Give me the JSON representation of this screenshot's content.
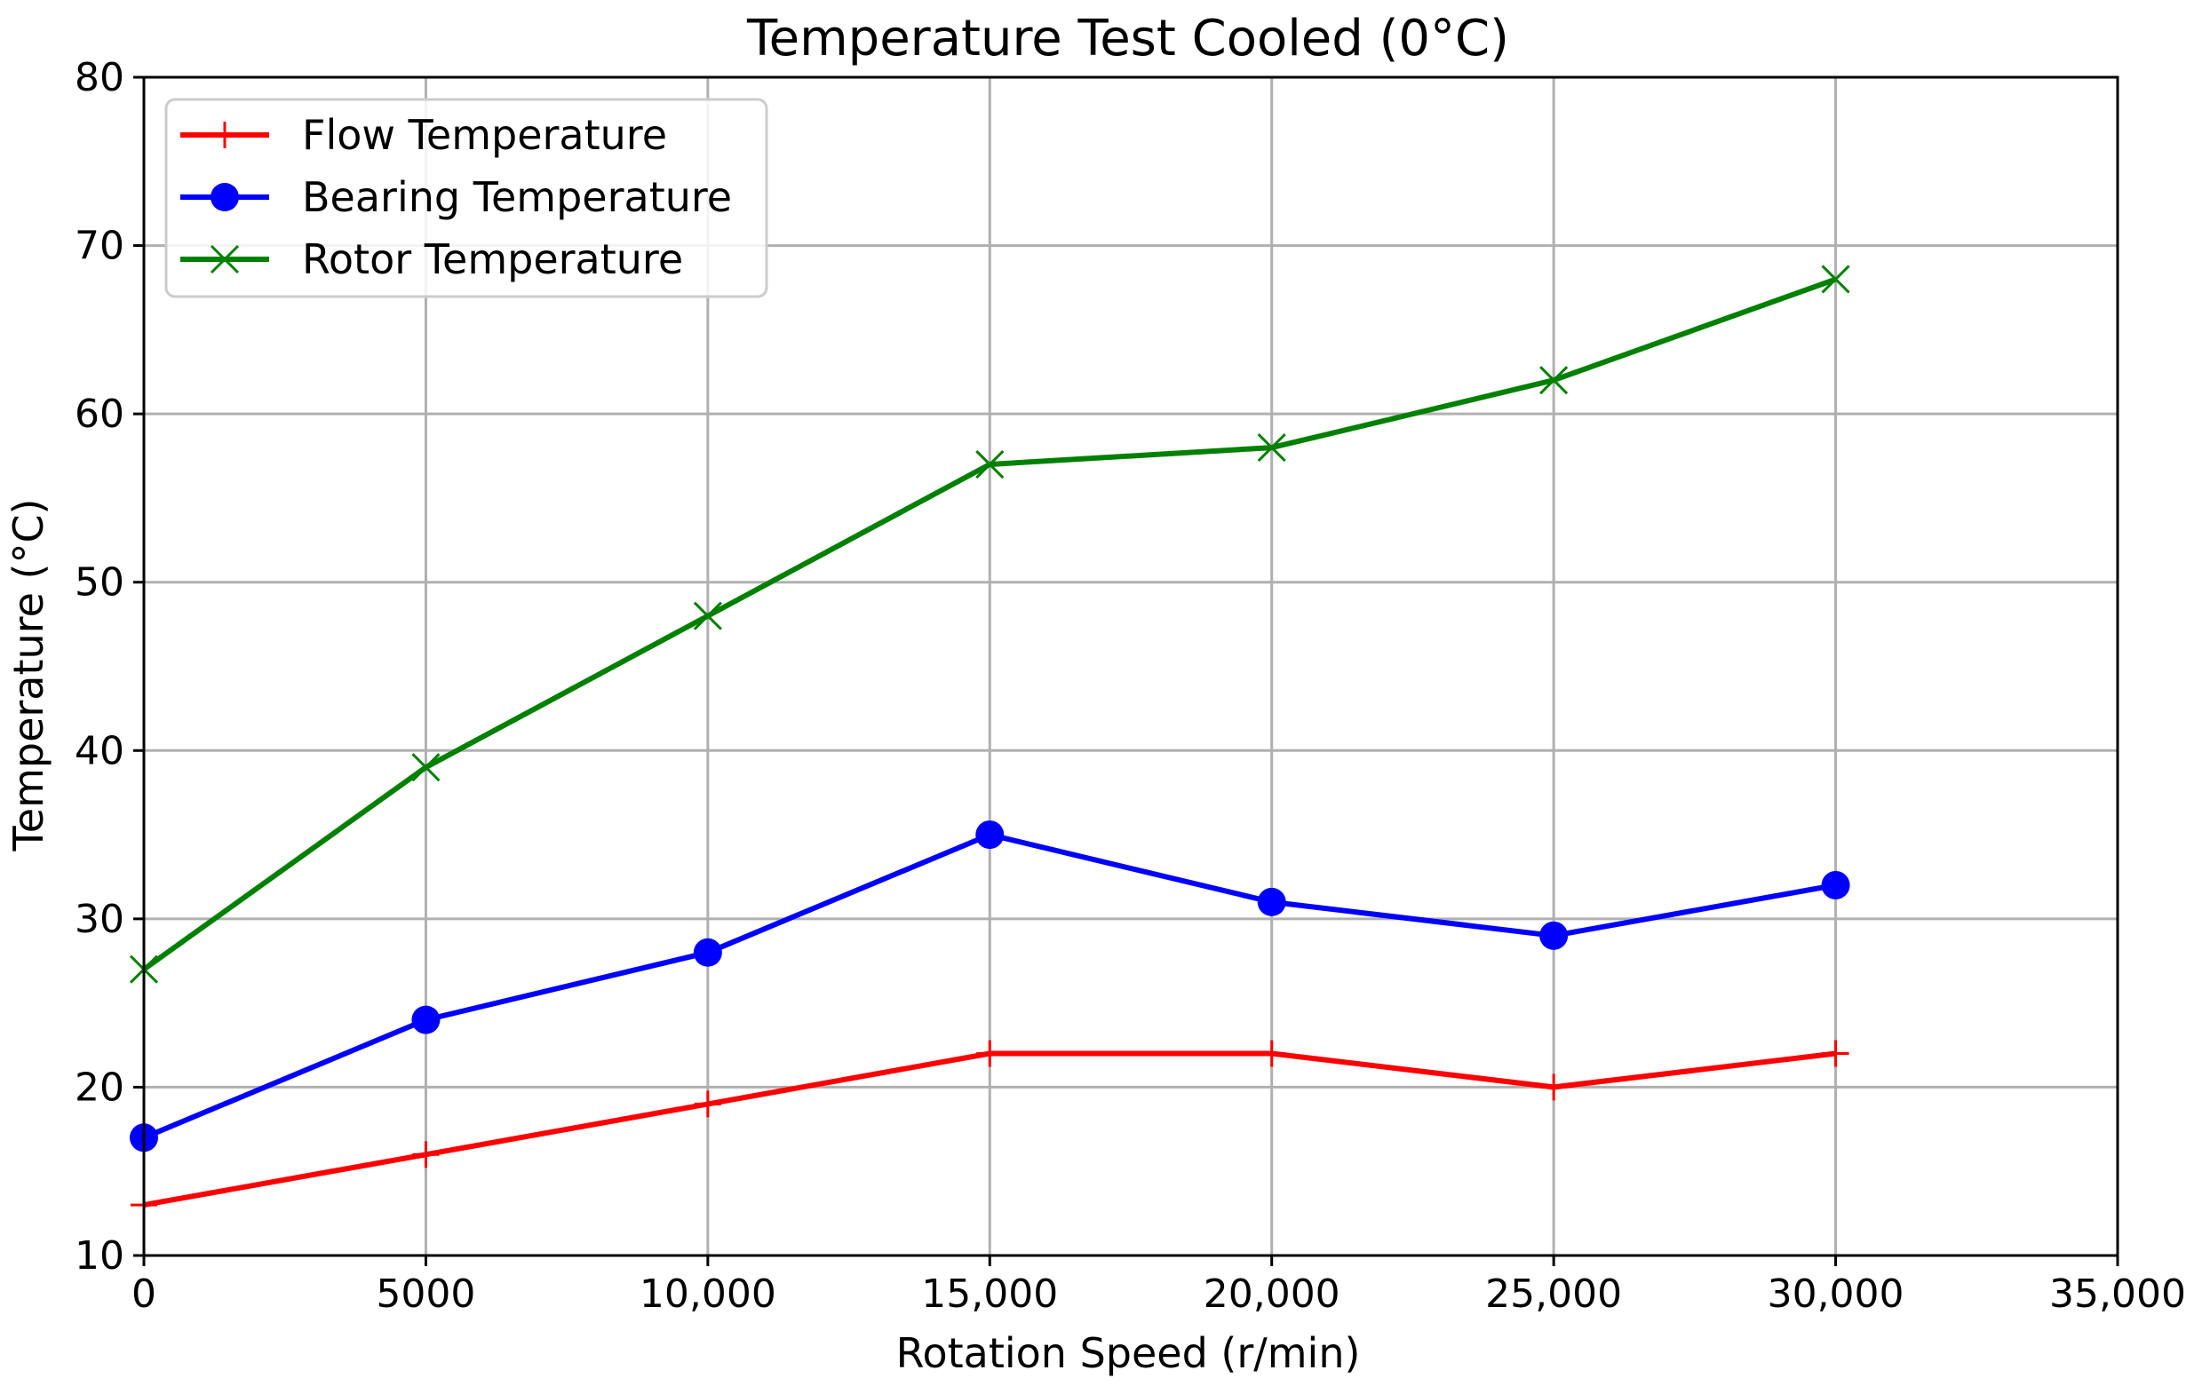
{
  "chart_data": {
    "type": "line",
    "title": "Temperature Test Cooled (0°C)",
    "xlabel": "Rotation Speed (r/min)",
    "ylabel": "Temperature (°C)",
    "xlim": [
      0,
      35000
    ],
    "ylim": [
      10,
      80
    ],
    "grid": true,
    "legend_position": "top-left",
    "x_ticks": [
      {
        "value": 0,
        "label": "0"
      },
      {
        "value": 5000,
        "label": "5000"
      },
      {
        "value": 10000,
        "label": "10,000"
      },
      {
        "value": 15000,
        "label": "15,000"
      },
      {
        "value": 20000,
        "label": "20,000"
      },
      {
        "value": 25000,
        "label": "25,000"
      },
      {
        "value": 30000,
        "label": "30,000"
      },
      {
        "value": 35000,
        "label": "35,000"
      }
    ],
    "y_ticks": [
      {
        "value": 10,
        "label": "10"
      },
      {
        "value": 20,
        "label": "20"
      },
      {
        "value": 30,
        "label": "30"
      },
      {
        "value": 40,
        "label": "40"
      },
      {
        "value": 50,
        "label": "50"
      },
      {
        "value": 60,
        "label": "60"
      },
      {
        "value": 70,
        "label": "70"
      },
      {
        "value": 80,
        "label": "80"
      }
    ],
    "x": [
      0,
      5000,
      10000,
      15000,
      20000,
      25000,
      30000
    ],
    "series": [
      {
        "name": "Flow Temperature",
        "key": "flow",
        "color": "#ff0000",
        "marker": "plus",
        "values": [
          13,
          16,
          19,
          22,
          22,
          20,
          22
        ]
      },
      {
        "name": "Bearing Temperature",
        "key": "bearing",
        "color": "#0000ff",
        "marker": "circle",
        "values": [
          17,
          24,
          28,
          35,
          31,
          29,
          32
        ]
      },
      {
        "name": "Rotor Temperature",
        "key": "rotor",
        "color": "#008000",
        "marker": "x",
        "values": [
          27,
          39,
          48,
          57,
          58,
          62,
          68
        ]
      }
    ]
  }
}
